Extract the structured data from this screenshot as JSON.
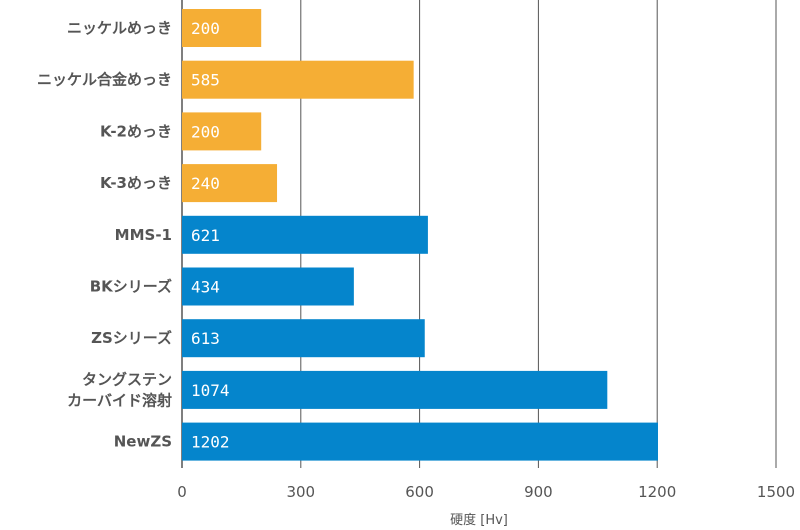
{
  "chart_data": {
    "type": "bar",
    "orientation": "horizontal",
    "title": "",
    "xlabel": "硬度 [Hv]",
    "ylabel": "",
    "xlim": [
      0,
      1500
    ],
    "xticks": [
      0,
      300,
      600,
      900,
      1200,
      1500
    ],
    "grid": "vertical",
    "legend": "none",
    "categories": [
      [
        "ニッケルめっき"
      ],
      [
        "ニッケル合金めっき"
      ],
      [
        "K-2めっき"
      ],
      [
        "K-3めっき"
      ],
      [
        "MMS-1"
      ],
      [
        "BKシリーズ"
      ],
      [
        "ZSシリーズ"
      ],
      [
        "タングステン",
        "カーバイド溶射"
      ],
      [
        "NewZS"
      ]
    ],
    "values": [
      200,
      585,
      200,
      240,
      621,
      434,
      613,
      1074,
      1202
    ],
    "bar_colors": [
      "#f5ae35",
      "#f5ae35",
      "#f5ae35",
      "#f5ae35",
      "#0585cc",
      "#0585cc",
      "#0585cc",
      "#0585cc",
      "#0585cc"
    ],
    "grid_color": "#555555"
  }
}
